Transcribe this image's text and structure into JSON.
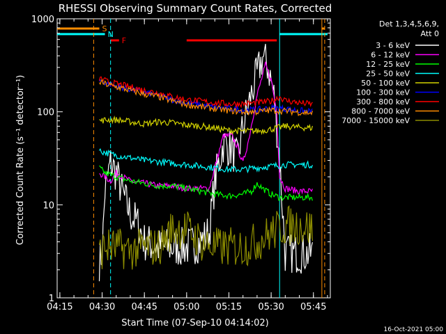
{
  "chart_data": {
    "type": "line",
    "title": "RHESSI Observing Summary Count Rates, Corrected",
    "xlabel": "Start Time (07-Sep-10 04:14:02)",
    "ylabel": "Corrected Count Rate (s⁻¹ detector⁻¹)",
    "y_scale": "log",
    "ylim": [
      1,
      1000
    ],
    "xlim": [
      "04:14:02",
      "05:51:00"
    ],
    "x_ticks": [
      "04:15",
      "04:30",
      "04:45",
      "05:00",
      "05:15",
      "05:30",
      "05:45"
    ],
    "y_ticks": [
      "1",
      "10",
      "100",
      "1000"
    ],
    "legend_header": [
      "Det 1,3,4,5,6,9,",
      "Att 0"
    ],
    "legend_placement": "right",
    "footer": "16-Oct-2021 05:00",
    "flags": [
      {
        "label": "S",
        "color": "#ff8c00",
        "segments": [
          [
            "04:14",
            "04:29"
          ],
          [
            "05:48",
            "05:49"
          ]
        ]
      },
      {
        "label": "N",
        "color": "#00ffff",
        "segments": [
          [
            "04:14",
            "04:31"
          ],
          [
            "05:33",
            "05:50"
          ]
        ]
      },
      {
        "label": "F",
        "color": "#ff0000",
        "segments": [
          [
            "04:33",
            "04:36"
          ],
          [
            "05:00",
            "05:32"
          ]
        ]
      }
    ],
    "vlines": [
      {
        "time": "04:27",
        "color": "#ff8c00",
        "style": "dashed"
      },
      {
        "time": "04:33",
        "color": "#00ffff",
        "style": "dashed"
      },
      {
        "time": "05:33",
        "color": "#00ffff",
        "style": "solid"
      },
      {
        "time": "05:48",
        "color": "#ff8c00",
        "style": "solid"
      },
      {
        "time": "05:49",
        "color": "#ff8c00",
        "style": "dashed"
      }
    ],
    "series": [
      {
        "name": "3 - 6 keV",
        "color": "#ffffff",
        "points": [
          [
            "04:29",
            2.5
          ],
          [
            "04:30",
            3
          ],
          [
            "04:31",
            14
          ],
          [
            "04:33",
            28
          ],
          [
            "04:35",
            22
          ],
          [
            "04:37",
            14
          ],
          [
            "04:40",
            8
          ],
          [
            "04:43",
            6
          ],
          [
            "04:45",
            4
          ],
          [
            "04:50",
            3.5
          ],
          [
            "04:55",
            3.5
          ],
          [
            "05:00",
            3.5
          ],
          [
            "05:05",
            4
          ],
          [
            "05:08",
            5
          ],
          [
            "05:10",
            18
          ],
          [
            "05:13",
            45
          ],
          [
            "05:16",
            40
          ],
          [
            "05:18",
            30
          ],
          [
            "05:20",
            70
          ],
          [
            "05:24",
            200
          ],
          [
            "05:27",
            390
          ],
          [
            "05:29",
            300
          ],
          [
            "05:31",
            150
          ],
          [
            "05:33",
            30
          ],
          [
            "05:35",
            3
          ],
          [
            "05:40",
            3
          ],
          [
            "05:45",
            3
          ]
        ]
      },
      {
        "name": "6 - 12 keV",
        "color": "#ff00ff",
        "points": [
          [
            "04:29",
            22
          ],
          [
            "04:31",
            20
          ],
          [
            "04:33",
            18
          ],
          [
            "04:35",
            22
          ],
          [
            "04:40",
            18
          ],
          [
            "04:45",
            17
          ],
          [
            "04:50",
            16
          ],
          [
            "04:55",
            16
          ],
          [
            "05:00",
            15
          ],
          [
            "05:05",
            15
          ],
          [
            "05:08",
            15
          ],
          [
            "05:10",
            25
          ],
          [
            "05:13",
            55
          ],
          [
            "05:16",
            55
          ],
          [
            "05:18",
            42
          ],
          [
            "05:20",
            28
          ],
          [
            "05:22",
            50
          ],
          [
            "05:25",
            150
          ],
          [
            "05:28",
            320
          ],
          [
            "05:30",
            220
          ],
          [
            "05:32",
            100
          ],
          [
            "05:33",
            20
          ],
          [
            "05:35",
            15
          ],
          [
            "05:40",
            14
          ],
          [
            "05:45",
            14
          ]
        ]
      },
      {
        "name": "12 - 25 keV",
        "color": "#00ff00",
        "points": [
          [
            "04:29",
            25
          ],
          [
            "04:31",
            22
          ],
          [
            "04:35",
            20
          ],
          [
            "04:40",
            18
          ],
          [
            "04:45",
            17
          ],
          [
            "04:50",
            16
          ],
          [
            "04:55",
            16
          ],
          [
            "05:00",
            15
          ],
          [
            "05:05",
            14
          ],
          [
            "05:10",
            13
          ],
          [
            "05:15",
            12.5
          ],
          [
            "05:20",
            13
          ],
          [
            "05:23",
            14
          ],
          [
            "05:25",
            17
          ],
          [
            "05:27",
            15
          ],
          [
            "05:30",
            13
          ],
          [
            "05:33",
            12
          ],
          [
            "05:40",
            12
          ],
          [
            "05:45",
            12
          ]
        ]
      },
      {
        "name": "25 - 50 keV",
        "color": "#00ffff",
        "points": [
          [
            "04:29",
            38
          ],
          [
            "04:32",
            36
          ],
          [
            "04:35",
            34
          ],
          [
            "04:40",
            32
          ],
          [
            "04:45",
            30
          ],
          [
            "04:50",
            29
          ],
          [
            "04:55",
            28
          ],
          [
            "05:00",
            27
          ],
          [
            "05:05",
            26
          ],
          [
            "05:10",
            25
          ],
          [
            "05:15",
            24
          ],
          [
            "05:20",
            24
          ],
          [
            "05:25",
            25
          ],
          [
            "05:30",
            26
          ],
          [
            "05:35",
            27
          ],
          [
            "05:40",
            27
          ],
          [
            "05:45",
            27
          ]
        ]
      },
      {
        "name": "50 - 100 keV",
        "color": "#d4d400",
        "points": [
          [
            "04:29",
            80
          ],
          [
            "04:32",
            82
          ],
          [
            "04:35",
            82
          ],
          [
            "04:40",
            78
          ],
          [
            "04:45",
            74
          ],
          [
            "04:50",
            78
          ],
          [
            "04:55",
            76
          ],
          [
            "05:00",
            72
          ],
          [
            "05:05",
            70
          ],
          [
            "05:10",
            67
          ],
          [
            "05:15",
            63
          ],
          [
            "05:20",
            62
          ],
          [
            "05:25",
            62
          ],
          [
            "05:30",
            65
          ],
          [
            "05:35",
            70
          ],
          [
            "05:40",
            68
          ],
          [
            "05:45",
            67
          ]
        ]
      },
      {
        "name": "100 - 300 keV",
        "color": "#0000ff",
        "points": [
          [
            "04:29",
            220
          ],
          [
            "04:32",
            200
          ],
          [
            "04:35",
            190
          ],
          [
            "04:40",
            175
          ],
          [
            "04:45",
            160
          ],
          [
            "04:50",
            150
          ],
          [
            "04:55",
            135
          ],
          [
            "05:00",
            125
          ],
          [
            "05:05",
            118
          ],
          [
            "05:10",
            112
          ],
          [
            "05:15",
            108
          ],
          [
            "05:20",
            105
          ],
          [
            "05:25",
            105
          ],
          [
            "05:30",
            110
          ],
          [
            "05:35",
            108
          ],
          [
            "05:40",
            103
          ],
          [
            "05:45",
            100
          ]
        ]
      },
      {
        "name": "300 - 800 keV",
        "color": "#ff0000",
        "points": [
          [
            "04:29",
            230
          ],
          [
            "04:32",
            210
          ],
          [
            "04:35",
            200
          ],
          [
            "04:40",
            185
          ],
          [
            "04:45",
            170
          ],
          [
            "04:50",
            160
          ],
          [
            "04:55",
            145
          ],
          [
            "05:00",
            135
          ],
          [
            "05:05",
            130
          ],
          [
            "05:10",
            125
          ],
          [
            "05:15",
            122
          ],
          [
            "05:20",
            122
          ],
          [
            "05:25",
            125
          ],
          [
            "05:30",
            130
          ],
          [
            "05:33",
            145
          ],
          [
            "05:35",
            132
          ],
          [
            "05:40",
            125
          ],
          [
            "05:45",
            120
          ]
        ]
      },
      {
        "name": "800 - 7000 keV",
        "color": "#ff8c00",
        "points": [
          [
            "04:29",
            210
          ],
          [
            "04:32",
            195
          ],
          [
            "04:35",
            185
          ],
          [
            "04:40",
            170
          ],
          [
            "04:45",
            155
          ],
          [
            "04:50",
            145
          ],
          [
            "04:55",
            130
          ],
          [
            "05:00",
            120
          ],
          [
            "05:05",
            113
          ],
          [
            "05:10",
            108
          ],
          [
            "05:15",
            103
          ],
          [
            "05:20",
            100
          ],
          [
            "05:25",
            100
          ],
          [
            "05:30",
            104
          ],
          [
            "05:35",
            102
          ],
          [
            "05:40",
            99
          ],
          [
            "05:45",
            97
          ]
        ]
      },
      {
        "name": "7000 - 15000 keV",
        "color": "#8c8c00",
        "points": [
          [
            "04:29",
            3
          ],
          [
            "04:31",
            3.5
          ],
          [
            "04:35",
            3.5
          ],
          [
            "04:40",
            3.2
          ],
          [
            "04:45",
            3.5
          ],
          [
            "04:50",
            3.5
          ],
          [
            "04:55",
            5.5
          ],
          [
            "05:00",
            5.5
          ],
          [
            "05:05",
            4
          ],
          [
            "05:10",
            3.5
          ],
          [
            "05:15",
            3.5
          ],
          [
            "05:20",
            3.5
          ],
          [
            "05:25",
            4
          ],
          [
            "05:30",
            5
          ],
          [
            "05:35",
            6
          ],
          [
            "05:40",
            6
          ],
          [
            "05:45",
            5.5
          ]
        ]
      }
    ]
  }
}
